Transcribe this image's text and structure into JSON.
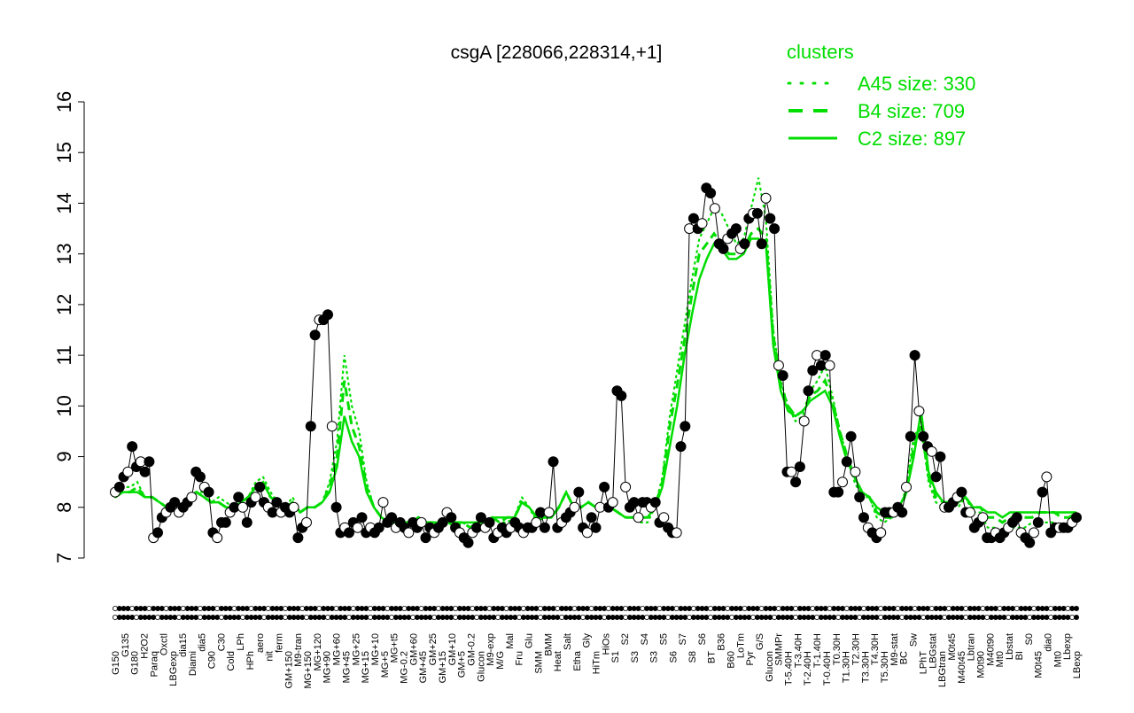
{
  "chart_data": {
    "type": "line",
    "title": "csgA [228066,228314,+1]",
    "xlabel": "",
    "ylabel": "",
    "ylim": [
      7,
      16
    ],
    "y_ticks": [
      "7",
      "8",
      "9",
      "10",
      "11",
      "12",
      "13",
      "14",
      "15",
      "16"
    ],
    "x_tick_labels": [
      "G150",
      "G135",
      "G180",
      "H2O2",
      "Paraq",
      "Oxctl",
      "LBGexp",
      "dia15",
      "Diami",
      "dia5",
      "C90",
      "C30",
      "Cold",
      "LPh",
      "HPh",
      "aero",
      "nit",
      "ferm",
      "GM+150",
      "M9-tran",
      "MG+150",
      "MG+120",
      "MG+90",
      "MG+60",
      "MG+45",
      "MG+25",
      "MG+15",
      "MG+10",
      "MG+5",
      "MG+t5",
      "MG-0.2",
      "GM+60",
      "GM+45",
      "GM+25",
      "GM+15",
      "GM+10",
      "GM+5",
      "GM-0.2",
      "Glucon",
      "M9-exp",
      "M/G",
      "Mal",
      "Fru",
      "Glu",
      "SMM",
      "BMM",
      "Heat",
      "Salt",
      "Etha",
      "Gly",
      "HiTm",
      "HiOs",
      "S1",
      "S2",
      "S3",
      "S4",
      "S3",
      "S5",
      "S6",
      "S7",
      "S8",
      "S6",
      "BT",
      "B36",
      "B60",
      "LoTm",
      "Pyr",
      "G/S",
      "Glucon",
      "SMMPr",
      "T-5.40H",
      "T-3.40H",
      "T-2.40H",
      "T-1.40H",
      "T-0.40H",
      "T0.30H",
      "T1.30H",
      "T2.30H",
      "T3.30H",
      "T4.30H",
      "T5.30H",
      "M9-stat",
      "BC",
      "Sw",
      "LPhT",
      "LBGstat",
      "LBGtran",
      "M0t45",
      "M40t45",
      "Lbtran",
      "M0t90",
      "M40t90",
      "Mt0",
      "Lbstat",
      "BI",
      "S0",
      "M0t45",
      "dia0",
      "Mt0",
      "Lbexp",
      "LBexp"
    ],
    "legend": {
      "title": "clusters",
      "placement": "top-right",
      "entries": [
        {
          "label": "A45 size: 330",
          "style": "dotted"
        },
        {
          "label": "B4 size: 709",
          "style": "dashed"
        },
        {
          "label": "C2 size: 897",
          "style": "solid"
        }
      ]
    },
    "colors": {
      "cluster_lines": "#00dd00",
      "data_line": "#000000",
      "legend_text": "#00dd00"
    },
    "grid": false,
    "x_range": [
      1,
      200
    ],
    "series": [
      {
        "type": "points",
        "x": [
          1,
          3,
          5,
          7,
          9,
          11,
          13,
          15,
          17,
          19,
          21,
          23,
          25,
          27,
          29,
          31,
          33,
          35,
          37,
          39,
          41,
          43,
          45,
          47,
          49,
          51,
          53,
          55,
          57,
          59,
          61,
          63,
          65,
          67,
          69,
          71,
          73,
          75,
          77,
          79,
          81,
          83,
          85,
          87,
          89,
          91,
          93,
          95,
          97,
          99,
          101,
          103,
          105,
          107,
          109,
          111,
          113,
          115,
          117,
          119,
          121,
          123,
          125,
          127,
          129,
          131,
          133,
          135,
          137,
          139,
          141,
          143,
          145,
          147,
          149,
          151,
          153,
          155,
          157,
          159,
          161,
          163,
          165,
          167,
          169,
          171,
          173,
          175,
          177,
          179,
          181,
          183,
          185,
          187,
          189,
          191,
          193,
          195,
          197,
          199
        ],
        "y": [
          8.3,
          9.2,
          8.7,
          8.9,
          7.4,
          7.5,
          7.8,
          8.0,
          7.9,
          8.1,
          8.7,
          8.4,
          7.5,
          7.4,
          7.7,
          7.7,
          8.0,
          8.2,
          7.7,
          8.2,
          8.4,
          7.9,
          8.1,
          7.9,
          8.0,
          7.9,
          7.4,
          7.7,
          9.6,
          11.7,
          11.8,
          9.6,
          8.0,
          7.5,
          7.5,
          7.7,
          7.6,
          7.5,
          7.6,
          8.1,
          7.7,
          7.6,
          7.6,
          7.5,
          7.7,
          7.6,
          7.5,
          7.6,
          7.4,
          7.9,
          7.6,
          7.4,
          7.6,
          7.7,
          7.5,
          7.6,
          7.6,
          7.8,
          7.6,
          7.9,
          8.9,
          7.6,
          7.8,
          7.9,
          8.3,
          7.6,
          7.5,
          7.8,
          8.0,
          10.3,
          10.2,
          8.4,
          8.0,
          8.1,
          7.8,
          8.1,
          8.0,
          7.7,
          7.8,
          7.7,
          7.6,
          7.5,
          9.2,
          9.6,
          13.5,
          13.7,
          13.5,
          13.6,
          14.3,
          14.2,
          13.9,
          13.2,
          13.4,
          13.1,
          13.2,
          13.6,
          13.8,
          13.7,
          13.2,
          14.1
        ],
        "note": ""
      }
    ],
    "series_detail": {
      "name": "",
      "values": [
        8.3,
        8.4,
        8.6,
        8.7,
        9.2,
        8.8,
        8.9,
        8.7,
        8.9,
        7.4,
        7.5,
        7.8,
        7.9,
        8.0,
        8.1,
        7.9,
        8.0,
        8.1,
        8.2,
        8.7,
        8.6,
        8.4,
        8.3,
        7.5,
        7.4,
        7.7,
        7.7,
        7.9,
        8.0,
        8.2,
        8.0,
        7.7,
        8.1,
        8.2,
        8.4,
        8.1,
        8.0,
        7.9,
        8.1,
        7.9,
        8.0,
        7.9,
        8.0,
        7.4,
        7.6,
        7.7,
        9.6,
        11.4,
        11.7,
        11.7,
        11.8,
        9.6,
        8.0,
        7.5,
        7.6,
        7.5,
        7.7,
        7.6,
        7.8,
        7.5,
        7.6,
        7.5,
        7.6,
        8.1,
        7.7,
        7.8,
        7.6,
        7.7,
        7.6,
        7.5,
        7.7,
        7.6,
        7.7,
        7.4,
        7.6,
        7.5,
        7.6,
        7.7,
        7.9,
        7.8,
        7.6,
        7.5,
        7.4,
        7.3,
        7.5,
        7.6,
        7.8,
        7.6,
        7.7,
        7.4,
        7.5,
        7.6,
        7.5,
        7.6,
        7.7,
        7.6,
        7.5,
        7.6,
        7.6,
        7.7,
        7.9,
        7.6,
        7.9,
        8.9,
        7.6,
        7.7,
        7.8,
        7.9,
        8.0,
        8.3,
        7.6,
        7.5,
        7.8,
        7.6,
        8.0,
        8.4,
        8.0,
        8.1,
        10.3,
        10.2,
        8.4,
        8.0,
        8.1,
        7.8,
        8.1,
        8.1,
        8.0,
        8.1,
        7.7,
        7.8,
        7.6,
        7.5,
        7.5,
        9.2,
        9.6,
        13.5,
        13.7,
        13.5,
        13.6,
        14.3,
        14.2,
        13.9,
        13.2,
        13.1,
        13.3,
        13.4,
        13.5,
        13.1,
        13.2,
        13.7,
        13.8,
        13.8,
        13.2,
        14.1,
        13.7,
        13.5,
        10.8,
        10.6,
        8.7,
        8.7,
        8.5,
        8.8,
        9.7,
        10.3,
        10.7,
        11.0,
        10.8,
        11.0,
        10.8,
        8.3,
        8.3,
        8.5,
        8.9,
        9.4,
        8.7,
        8.2,
        7.8,
        7.6,
        7.5,
        7.4,
        7.5,
        7.9,
        7.9,
        7.9,
        8.0,
        7.9,
        8.4,
        9.4,
        11.0,
        9.9,
        9.4,
        9.2,
        9.1,
        8.6,
        9.0,
        8.0,
        8.0,
        8.1,
        8.2,
        8.3,
        7.9,
        7.9,
        7.6,
        7.7,
        7.8,
        7.4,
        7.4,
        7.5,
        7.4,
        7.5,
        7.6,
        7.7,
        7.8,
        7.5,
        7.4,
        7.3,
        7.5,
        7.7,
        8.3,
        8.6,
        7.5,
        7.6,
        7.6,
        7.6,
        7.6,
        7.7,
        7.8
      ]
    },
    "cluster_lines": [
      {
        "name": "A45 size: 330",
        "style": "dotted",
        "values": [
          8.2,
          8.4,
          8.4,
          8.5,
          8.2,
          8.2,
          8.1,
          8.0,
          8.1,
          8.0,
          8.2,
          8.3,
          8.3,
          8.1,
          8.2,
          8.1,
          8.0,
          8.1,
          8.2,
          8.5,
          8.6,
          8.3,
          8.1,
          8.0,
          8.2,
          7.9,
          8.0,
          8.0,
          8.1,
          8.5,
          9.3,
          11.0,
          10.0,
          9.5,
          8.5,
          8.0,
          7.8,
          7.7,
          7.6,
          7.7,
          7.7,
          7.8,
          7.7,
          7.7,
          7.6,
          7.7,
          7.6,
          7.7,
          7.6,
          7.6,
          7.7,
          7.8,
          7.7,
          7.7,
          7.8,
          8.2,
          8.0,
          7.7,
          7.8,
          7.8,
          8.0,
          8.3,
          8.0,
          8.0,
          8.1,
          8.0,
          8.0,
          8.0,
          7.9,
          7.8,
          7.8,
          7.7,
          7.7,
          8.0,
          8.6,
          9.8,
          10.7,
          11.6,
          12.5,
          13.3,
          13.6,
          13.9,
          13.8,
          13.5,
          13.2,
          13.3,
          13.9,
          14.5,
          13.7,
          11.5,
          10.5,
          10.0,
          9.7,
          9.8,
          10.3,
          10.5,
          10.8,
          10.2,
          9.5,
          9.0,
          8.5,
          8.2,
          8.2,
          7.8,
          7.7,
          7.8,
          7.9,
          8.4,
          9.4,
          9.6,
          8.5,
          8.1,
          8.0,
          8.1,
          8.0,
          8.2,
          7.9,
          7.9,
          7.6,
          7.6,
          7.5,
          7.6,
          7.6,
          7.6,
          7.7,
          7.7,
          7.7,
          7.7,
          7.6,
          7.6,
          7.7
        ]
      },
      {
        "name": "B4 size: 709",
        "style": "dashed",
        "values": [
          8.2,
          8.3,
          8.3,
          8.4,
          8.2,
          8.2,
          8.1,
          8.0,
          8.1,
          8.0,
          8.2,
          8.3,
          8.2,
          8.1,
          8.1,
          8.0,
          8.0,
          8.1,
          8.2,
          8.4,
          8.5,
          8.2,
          8.1,
          8.0,
          8.1,
          7.9,
          8.0,
          8.0,
          8.1,
          8.4,
          9.0,
          10.5,
          9.6,
          9.2,
          8.4,
          8.0,
          7.8,
          7.7,
          7.7,
          7.7,
          7.7,
          7.8,
          7.7,
          7.7,
          7.7,
          7.7,
          7.7,
          7.7,
          7.6,
          7.7,
          7.7,
          7.8,
          7.7,
          7.8,
          7.8,
          8.1,
          8.0,
          7.8,
          7.8,
          7.8,
          8.0,
          8.3,
          8.0,
          8.0,
          8.1,
          8.0,
          8.0,
          8.0,
          7.9,
          7.8,
          7.8,
          7.8,
          7.8,
          8.0,
          8.5,
          9.6,
          10.4,
          11.3,
          12.2,
          13.0,
          13.2,
          13.4,
          13.2,
          13.0,
          13.0,
          13.1,
          13.4,
          13.5,
          13.3,
          11.4,
          10.4,
          10.0,
          9.8,
          9.9,
          10.2,
          10.3,
          10.5,
          10.1,
          9.5,
          9.0,
          8.6,
          8.3,
          8.2,
          7.9,
          7.8,
          7.8,
          7.9,
          8.3,
          9.2,
          9.6,
          8.6,
          8.2,
          8.1,
          8.1,
          8.1,
          8.2,
          8.0,
          8.0,
          7.8,
          7.8,
          7.7,
          7.8,
          7.8,
          7.8,
          7.8,
          7.9,
          7.9,
          7.9,
          7.8,
          7.8,
          7.9
        ]
      },
      {
        "name": "C2 size: 897",
        "style": "solid",
        "values": [
          8.2,
          8.3,
          8.3,
          8.3,
          8.2,
          8.2,
          8.1,
          8.0,
          8.1,
          8.0,
          8.2,
          8.3,
          8.2,
          8.1,
          8.1,
          8.0,
          8.0,
          8.1,
          8.2,
          8.4,
          8.5,
          8.2,
          8.1,
          8.0,
          8.1,
          7.9,
          8.0,
          8.0,
          8.1,
          8.3,
          8.8,
          9.8,
          9.3,
          9.0,
          8.3,
          8.0,
          7.8,
          7.7,
          7.7,
          7.7,
          7.7,
          7.8,
          7.7,
          7.7,
          7.7,
          7.7,
          7.7,
          7.7,
          7.7,
          7.7,
          7.7,
          7.8,
          7.8,
          7.8,
          7.8,
          8.1,
          8.0,
          7.8,
          7.8,
          7.8,
          8.0,
          8.3,
          8.0,
          8.0,
          8.1,
          8.0,
          8.0,
          8.0,
          7.9,
          7.8,
          7.8,
          7.8,
          7.8,
          8.0,
          8.4,
          9.2,
          10.0,
          11.0,
          11.8,
          12.5,
          12.9,
          13.2,
          13.1,
          12.9,
          12.9,
          13.0,
          13.3,
          13.3,
          13.2,
          11.2,
          10.3,
          9.9,
          9.8,
          9.9,
          10.1,
          10.2,
          10.3,
          10.0,
          9.4,
          8.9,
          8.6,
          8.3,
          8.2,
          8.0,
          7.9,
          7.9,
          8.0,
          8.3,
          9.0,
          9.9,
          8.7,
          8.3,
          8.1,
          8.1,
          8.1,
          8.2,
          8.0,
          8.0,
          7.9,
          7.9,
          7.8,
          7.9,
          7.9,
          7.9,
          7.9,
          7.9,
          7.9,
          7.9,
          7.9,
          7.9,
          7.9
        ]
      }
    ]
  }
}
